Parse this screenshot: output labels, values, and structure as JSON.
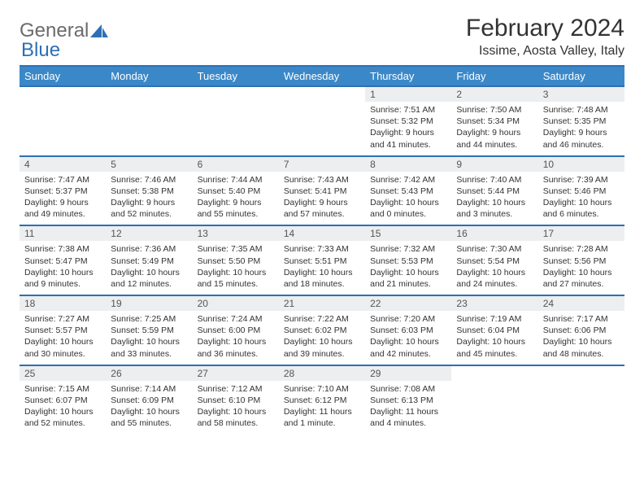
{
  "logo": {
    "text1": "General",
    "text2": "Blue"
  },
  "title": "February 2024",
  "location": "Issime, Aosta Valley, Italy",
  "colors": {
    "header_bg": "#3b88c9",
    "header_border": "#2d6fb5",
    "daynum_bg": "#eceeef",
    "text": "#333333"
  },
  "day_headers": [
    "Sunday",
    "Monday",
    "Tuesday",
    "Wednesday",
    "Thursday",
    "Friday",
    "Saturday"
  ],
  "weeks": [
    [
      null,
      null,
      null,
      null,
      {
        "n": "1",
        "sr": "7:51 AM",
        "ss": "5:32 PM",
        "dl": "9 hours and 41 minutes."
      },
      {
        "n": "2",
        "sr": "7:50 AM",
        "ss": "5:34 PM",
        "dl": "9 hours and 44 minutes."
      },
      {
        "n": "3",
        "sr": "7:48 AM",
        "ss": "5:35 PM",
        "dl": "9 hours and 46 minutes."
      }
    ],
    [
      {
        "n": "4",
        "sr": "7:47 AM",
        "ss": "5:37 PM",
        "dl": "9 hours and 49 minutes."
      },
      {
        "n": "5",
        "sr": "7:46 AM",
        "ss": "5:38 PM",
        "dl": "9 hours and 52 minutes."
      },
      {
        "n": "6",
        "sr": "7:44 AM",
        "ss": "5:40 PM",
        "dl": "9 hours and 55 minutes."
      },
      {
        "n": "7",
        "sr": "7:43 AM",
        "ss": "5:41 PM",
        "dl": "9 hours and 57 minutes."
      },
      {
        "n": "8",
        "sr": "7:42 AM",
        "ss": "5:43 PM",
        "dl": "10 hours and 0 minutes."
      },
      {
        "n": "9",
        "sr": "7:40 AM",
        "ss": "5:44 PM",
        "dl": "10 hours and 3 minutes."
      },
      {
        "n": "10",
        "sr": "7:39 AM",
        "ss": "5:46 PM",
        "dl": "10 hours and 6 minutes."
      }
    ],
    [
      {
        "n": "11",
        "sr": "7:38 AM",
        "ss": "5:47 PM",
        "dl": "10 hours and 9 minutes."
      },
      {
        "n": "12",
        "sr": "7:36 AM",
        "ss": "5:49 PM",
        "dl": "10 hours and 12 minutes."
      },
      {
        "n": "13",
        "sr": "7:35 AM",
        "ss": "5:50 PM",
        "dl": "10 hours and 15 minutes."
      },
      {
        "n": "14",
        "sr": "7:33 AM",
        "ss": "5:51 PM",
        "dl": "10 hours and 18 minutes."
      },
      {
        "n": "15",
        "sr": "7:32 AM",
        "ss": "5:53 PM",
        "dl": "10 hours and 21 minutes."
      },
      {
        "n": "16",
        "sr": "7:30 AM",
        "ss": "5:54 PM",
        "dl": "10 hours and 24 minutes."
      },
      {
        "n": "17",
        "sr": "7:28 AM",
        "ss": "5:56 PM",
        "dl": "10 hours and 27 minutes."
      }
    ],
    [
      {
        "n": "18",
        "sr": "7:27 AM",
        "ss": "5:57 PM",
        "dl": "10 hours and 30 minutes."
      },
      {
        "n": "19",
        "sr": "7:25 AM",
        "ss": "5:59 PM",
        "dl": "10 hours and 33 minutes."
      },
      {
        "n": "20",
        "sr": "7:24 AM",
        "ss": "6:00 PM",
        "dl": "10 hours and 36 minutes."
      },
      {
        "n": "21",
        "sr": "7:22 AM",
        "ss": "6:02 PM",
        "dl": "10 hours and 39 minutes."
      },
      {
        "n": "22",
        "sr": "7:20 AM",
        "ss": "6:03 PM",
        "dl": "10 hours and 42 minutes."
      },
      {
        "n": "23",
        "sr": "7:19 AM",
        "ss": "6:04 PM",
        "dl": "10 hours and 45 minutes."
      },
      {
        "n": "24",
        "sr": "7:17 AM",
        "ss": "6:06 PM",
        "dl": "10 hours and 48 minutes."
      }
    ],
    [
      {
        "n": "25",
        "sr": "7:15 AM",
        "ss": "6:07 PM",
        "dl": "10 hours and 52 minutes."
      },
      {
        "n": "26",
        "sr": "7:14 AM",
        "ss": "6:09 PM",
        "dl": "10 hours and 55 minutes."
      },
      {
        "n": "27",
        "sr": "7:12 AM",
        "ss": "6:10 PM",
        "dl": "10 hours and 58 minutes."
      },
      {
        "n": "28",
        "sr": "7:10 AM",
        "ss": "6:12 PM",
        "dl": "11 hours and 1 minute."
      },
      {
        "n": "29",
        "sr": "7:08 AM",
        "ss": "6:13 PM",
        "dl": "11 hours and 4 minutes."
      },
      null,
      null
    ]
  ],
  "labels": {
    "sunrise": "Sunrise:",
    "sunset": "Sunset:",
    "daylight": "Daylight:"
  }
}
